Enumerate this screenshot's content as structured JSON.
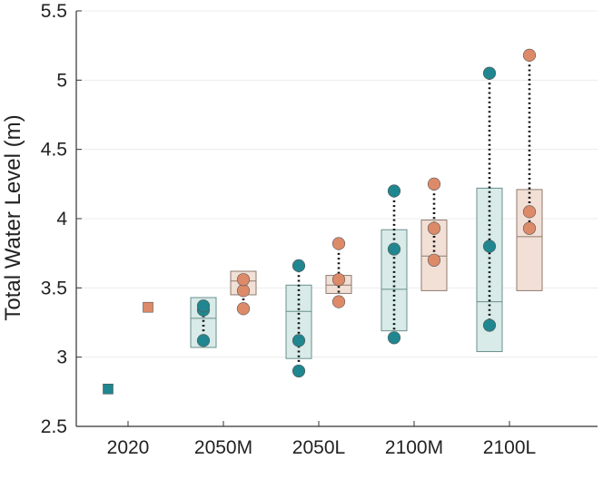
{
  "colors": {
    "series_a": "#20868f",
    "series_a_box_fill": "#d8ebe8",
    "series_a_box_stroke": "#6a8f8c",
    "series_b": "#dd8a69",
    "series_b_box_fill": "#f2e0d6",
    "series_b_box_stroke": "#8f7a6e",
    "grid": "#ececec",
    "axis": "#333333"
  },
  "chart_data": {
    "type": "box-and-points",
    "title": "",
    "xlabel": "",
    "ylabel": "Total Water Level (m)",
    "ylim": [
      2.5,
      5.5
    ],
    "yticks": [
      "2.5",
      "3",
      "3.5",
      "4",
      "4.5",
      "5",
      "5.5"
    ],
    "categories": [
      "2020",
      "2050M",
      "2050L",
      "2100M",
      "2100L"
    ],
    "grid": "horizontal",
    "series": [
      {
        "color_key": "series_a",
        "baseline_2020": 2.77,
        "groups": [
          {
            "category": "2050M",
            "points": [
              3.12,
              3.34,
              3.37
            ],
            "box": {
              "q1": 3.07,
              "median": 3.28,
              "q3": 3.43
            }
          },
          {
            "category": "2050L",
            "points": [
              2.9,
              3.12,
              3.66
            ],
            "box": {
              "q1": 2.99,
              "median": 3.33,
              "q3": 3.52
            }
          },
          {
            "category": "2100M",
            "points": [
              3.14,
              3.78,
              4.2
            ],
            "box": {
              "q1": 3.19,
              "median": 3.49,
              "q3": 3.92
            }
          },
          {
            "category": "2100L",
            "points": [
              3.23,
              3.8,
              5.05
            ],
            "box": {
              "q1": 3.04,
              "median": 3.4,
              "q3": 4.22
            }
          }
        ]
      },
      {
        "color_key": "series_b",
        "baseline_2020": 3.36,
        "groups": [
          {
            "category": "2050M",
            "points": [
              3.35,
              3.48,
              3.56
            ],
            "box": {
              "q1": 3.45,
              "median": 3.55,
              "q3": 3.62
            }
          },
          {
            "category": "2050L",
            "points": [
              3.4,
              3.56,
              3.82
            ],
            "box": {
              "q1": 3.46,
              "median": 3.52,
              "q3": 3.59
            }
          },
          {
            "category": "2100M",
            "points": [
              3.7,
              3.93,
              4.25
            ],
            "box": {
              "q1": 3.48,
              "median": 3.73,
              "q3": 3.99
            }
          },
          {
            "category": "2100L",
            "points": [
              3.93,
              4.05,
              5.18
            ],
            "box": {
              "q1": 3.48,
              "median": 3.87,
              "q3": 4.21
            }
          }
        ]
      }
    ]
  }
}
